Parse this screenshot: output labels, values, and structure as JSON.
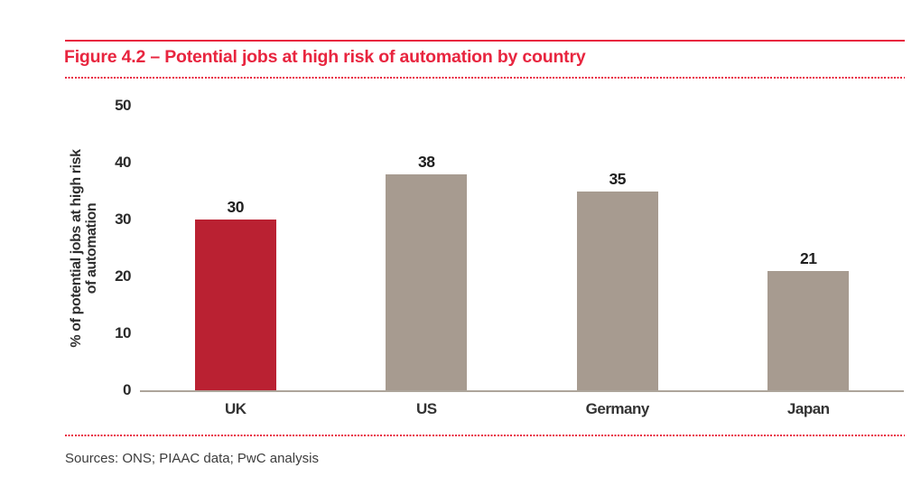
{
  "figure": {
    "title": "Figure 4.2 – Potential jobs at high risk of automation by country",
    "source_note": "Sources: ONS; PIAAC data; PwC analysis"
  },
  "colors": {
    "accent_red": "#E8253F",
    "bar_highlight_red": "#BA2132",
    "bar_default_taupe": "#A79B90",
    "axis_line_gray": "#ADA59B",
    "label_dark": "#2B2B2B"
  },
  "chart_data": {
    "type": "bar",
    "title": "",
    "categories": [
      "UK",
      "US",
      "Germany",
      "Japan"
    ],
    "values": [
      30,
      38,
      35,
      21
    ],
    "bar_colors": [
      "#BA2132",
      "#A79B90",
      "#A79B90",
      "#A79B90"
    ],
    "value_labels_shown": true,
    "xlabel": "",
    "ylabel": "% of potential jobs at high risk of automation",
    "ylabel_lines": [
      "% of potential jobs at high risk",
      "of automation"
    ],
    "yticks": [
      0,
      10,
      20,
      30,
      40,
      50
    ],
    "ylim": [
      0,
      50
    ],
    "grid": false,
    "legend": "none"
  }
}
